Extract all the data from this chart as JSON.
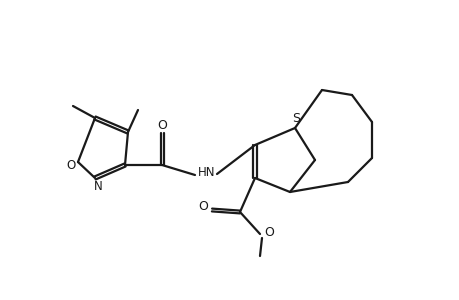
{
  "bg_color": "#ffffff",
  "line_color": "#1a1a1a",
  "line_width": 1.6,
  "figsize": [
    4.6,
    3.0
  ],
  "dpi": 100,
  "xlim": [
    0,
    4.6
  ],
  "ylim": [
    0,
    3.0
  ]
}
